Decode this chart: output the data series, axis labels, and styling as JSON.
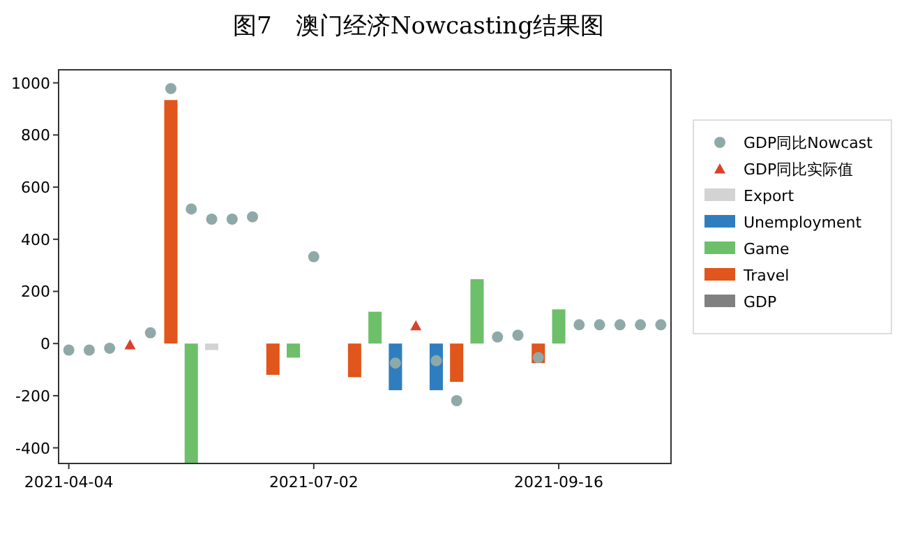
{
  "chart_data": {
    "type": "bar",
    "title": "图7　澳门经济Nowcasting结果图",
    "categories": [
      "2021-04-04",
      null,
      null,
      null,
      null,
      null,
      null,
      null,
      null,
      null,
      null,
      null,
      "2021-07-02",
      null,
      null,
      null,
      null,
      null,
      null,
      null,
      null,
      null,
      null,
      null,
      "2021-09-16",
      null,
      null,
      null,
      null,
      null
    ],
    "series": [
      {
        "name": "GDP同比Nowcast",
        "type": "scatter",
        "marker": "circle",
        "color": "#8fa9a8",
        "values": [
          -25,
          -25,
          -18,
          null,
          41,
          978,
          516,
          477,
          477,
          486,
          null,
          null,
          333,
          null,
          null,
          null,
          -75,
          null,
          -66,
          -219,
          null,
          25,
          32,
          -54,
          null,
          72,
          72,
          72,
          72,
          72
        ]
      },
      {
        "name": "GDP同比实际值",
        "type": "scatter",
        "marker": "triangle",
        "color": "#d9412b",
        "values": [
          null,
          null,
          null,
          -5,
          null,
          null,
          null,
          null,
          null,
          null,
          null,
          null,
          null,
          null,
          null,
          null,
          null,
          68,
          null,
          null,
          null,
          null,
          null,
          null,
          null,
          null,
          null,
          null,
          null,
          null
        ]
      },
      {
        "name": "Export",
        "color": "#d3d3d3",
        "values": [
          null,
          null,
          null,
          null,
          null,
          null,
          null,
          -25,
          null,
          null,
          null,
          null,
          null,
          null,
          null,
          null,
          null,
          null,
          null,
          null,
          null,
          null,
          null,
          null,
          null,
          null,
          null,
          null,
          null,
          null
        ]
      },
      {
        "name": "Unemployment",
        "color": "#2e7ebf",
        "values": [
          null,
          null,
          null,
          null,
          null,
          null,
          null,
          null,
          null,
          null,
          null,
          null,
          null,
          null,
          null,
          null,
          -179,
          null,
          -179,
          null,
          null,
          null,
          null,
          null,
          null,
          null,
          null,
          null,
          null,
          null
        ]
      },
      {
        "name": "Game",
        "color": "#6dbf6a",
        "values": [
          null,
          null,
          null,
          null,
          null,
          null,
          -460,
          null,
          null,
          null,
          null,
          -54,
          null,
          null,
          null,
          122,
          null,
          null,
          null,
          null,
          247,
          null,
          null,
          null,
          131,
          null,
          null,
          null,
          null,
          null
        ]
      },
      {
        "name": "Travel",
        "color": "#e0561c",
        "values": [
          null,
          null,
          null,
          null,
          null,
          934,
          null,
          null,
          null,
          null,
          -120,
          null,
          null,
          null,
          -129,
          null,
          null,
          null,
          null,
          -147,
          null,
          null,
          null,
          -75,
          null,
          null,
          null,
          null,
          null,
          null
        ]
      },
      {
        "name": "GDP",
        "color": "#808080",
        "values": [
          null,
          null,
          null,
          null,
          null,
          null,
          null,
          null,
          null,
          null,
          null,
          null,
          null,
          null,
          null,
          null,
          null,
          null,
          null,
          null,
          null,
          null,
          null,
          null,
          null,
          null,
          null,
          null,
          null,
          null
        ]
      }
    ],
    "ylim": [
      -460,
      1050
    ],
    "yticks": [
      -400,
      -200,
      0,
      200,
      400,
      600,
      800,
      1000
    ],
    "grid": false,
    "legend": "right"
  }
}
